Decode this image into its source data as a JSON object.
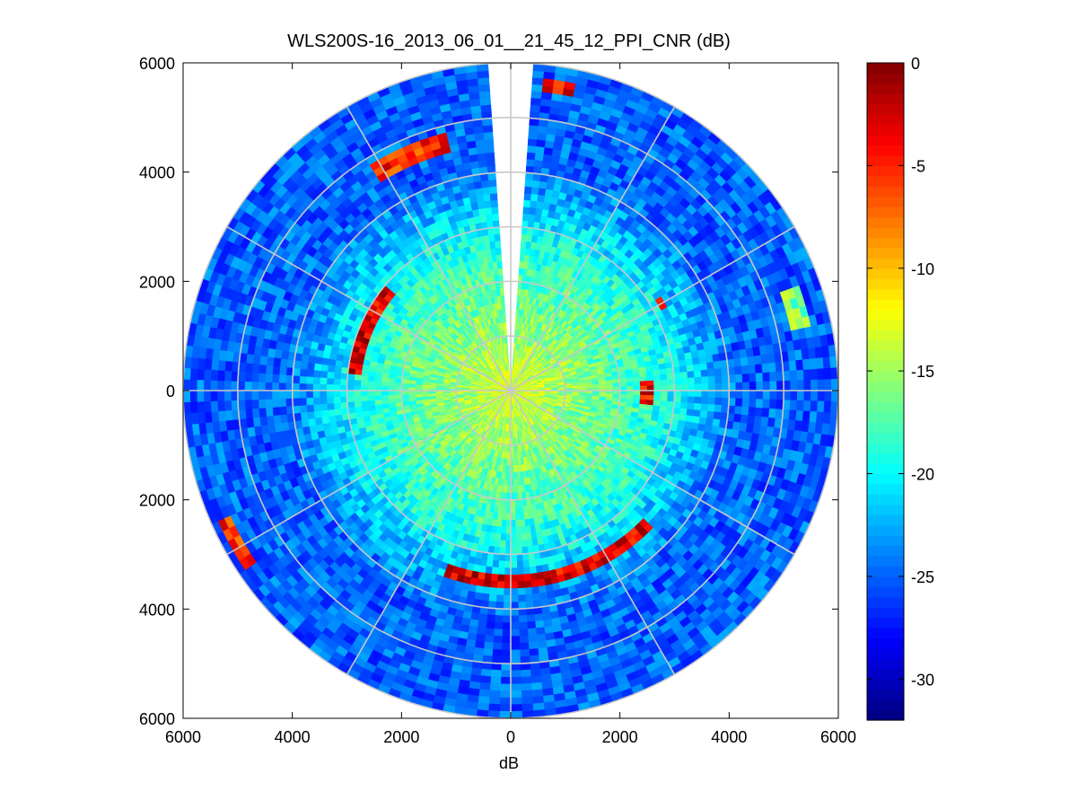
{
  "chart_data": {
    "type": "heatmap",
    "subtype": "polar-ppi",
    "title": "WLS200S-16_2013_06_01__21_45_12_PPI_CNR (dB)",
    "xlabel": "dB",
    "ylabel": "",
    "xlim": [
      -6000,
      6000
    ],
    "ylim": [
      -6000,
      6000
    ],
    "x_tick_values": [
      -6000,
      -4000,
      -2000,
      0,
      2000,
      4000,
      6000
    ],
    "x_tick_labels": [
      "6000",
      "4000",
      "2000",
      "0",
      "2000",
      "4000",
      "6000"
    ],
    "y_tick_values": [
      6000,
      4000,
      2000,
      0,
      -2000,
      -4000,
      -6000
    ],
    "y_tick_labels": [
      "6000",
      "4000",
      "2000",
      "0",
      "2000",
      "4000",
      "6000"
    ],
    "max_range_m": 6000,
    "range_rings_m": [
      1000,
      2000,
      3000,
      4000,
      5000,
      6000
    ],
    "spokes_deg": [
      0,
      30,
      60,
      90,
      120,
      150,
      180,
      210,
      240,
      270,
      300,
      330
    ],
    "data_gap_azimuth_deg": [
      -4,
      4
    ],
    "range_gates": 48,
    "azimuth_step_deg": 2,
    "background_cnr_db": {
      "near": -13,
      "mid": -19,
      "far": -25
    },
    "echo_features": [
      {
        "name": "north-west arc",
        "az_from": 328,
        "az_to": 346,
        "range_from": 4500,
        "range_to": 4900,
        "cnr_db": -5
      },
      {
        "name": "north-east arc",
        "az_from": 6,
        "az_to": 12,
        "range_from": 5550,
        "range_to": 5800,
        "cnr_db": -4
      },
      {
        "name": "west arc",
        "az_from": 276,
        "az_to": 310,
        "range_from": 2700,
        "range_to": 2950,
        "cnr_db": -3
      },
      {
        "name": "south arc",
        "az_from": 134,
        "az_to": 200,
        "range_from": 3350,
        "range_to": 3650,
        "cnr_db": -3
      },
      {
        "name": "south-west arc",
        "az_from": 236,
        "az_to": 246,
        "range_from": 5600,
        "range_to": 5900,
        "cnr_db": -5
      },
      {
        "name": "east echo",
        "az_from": 86,
        "az_to": 96,
        "range_from": 2400,
        "range_to": 2600,
        "cnr_db": -4
      },
      {
        "name": "east-north-east echo",
        "az_from": 58,
        "az_to": 62,
        "range_from": 3100,
        "range_to": 3300,
        "cnr_db": -5
      },
      {
        "name": "far east patch",
        "az_from": 70,
        "az_to": 78,
        "range_from": 5200,
        "range_to": 5600,
        "cnr_db": -16
      }
    ],
    "colorbar": {
      "colormap": "jet",
      "limits": [
        -32,
        0
      ],
      "tick_values": [
        0,
        -5,
        -10,
        -15,
        -20,
        -25,
        -30
      ],
      "tick_labels": [
        "0",
        "-5",
        "-10",
        "-15",
        "-20",
        "-25",
        "-30"
      ]
    }
  }
}
